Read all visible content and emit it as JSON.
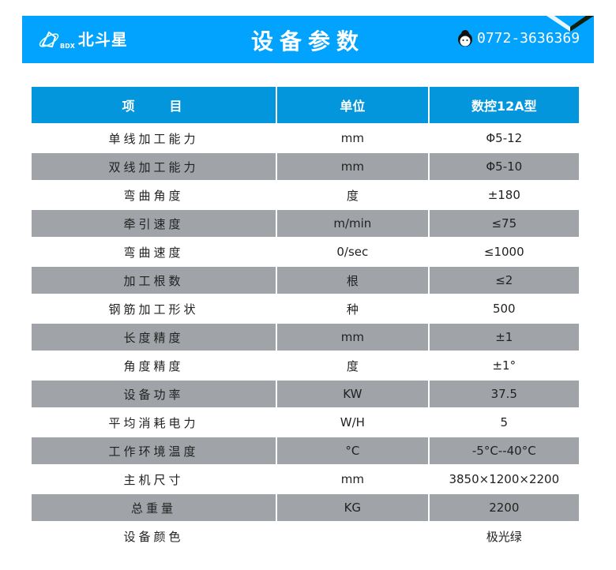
{
  "header": {
    "logo_abbr": "BDX",
    "logo_name": "北斗星",
    "title": "设备参数",
    "phone_icon": "customer-service-avatar-icon",
    "phone": "0772-3636369",
    "accent_color": "#01a3fe"
  },
  "table": {
    "columns": [
      "项　　目",
      "单位",
      "数控12A型"
    ],
    "rows": [
      [
        "单线加工能力",
        "mm",
        "Φ5-12"
      ],
      [
        "双线加工能力",
        "mm",
        "Φ5-10"
      ],
      [
        "弯曲角度",
        "度",
        "±180"
      ],
      [
        "牵引速度",
        "m/min",
        "≤75"
      ],
      [
        "弯曲速度",
        "0/sec",
        "≤1000"
      ],
      [
        "加工根数",
        "根",
        "≤2"
      ],
      [
        "钢筋加工形状",
        "种",
        "500"
      ],
      [
        "长度精度",
        "mm",
        "±1"
      ],
      [
        "角度精度",
        "度",
        "±1°"
      ],
      [
        "设备功率",
        "KW",
        "37.5"
      ],
      [
        "平均消耗电力",
        "W/H",
        "5"
      ],
      [
        "工作环境温度",
        "°C",
        "-5°C--40°C"
      ],
      [
        "主机尺寸",
        "mm",
        "3850×1200×2200"
      ],
      [
        "总重量",
        "KG",
        "2200"
      ],
      [
        "设备颜色",
        "",
        "极光绿"
      ]
    ]
  }
}
